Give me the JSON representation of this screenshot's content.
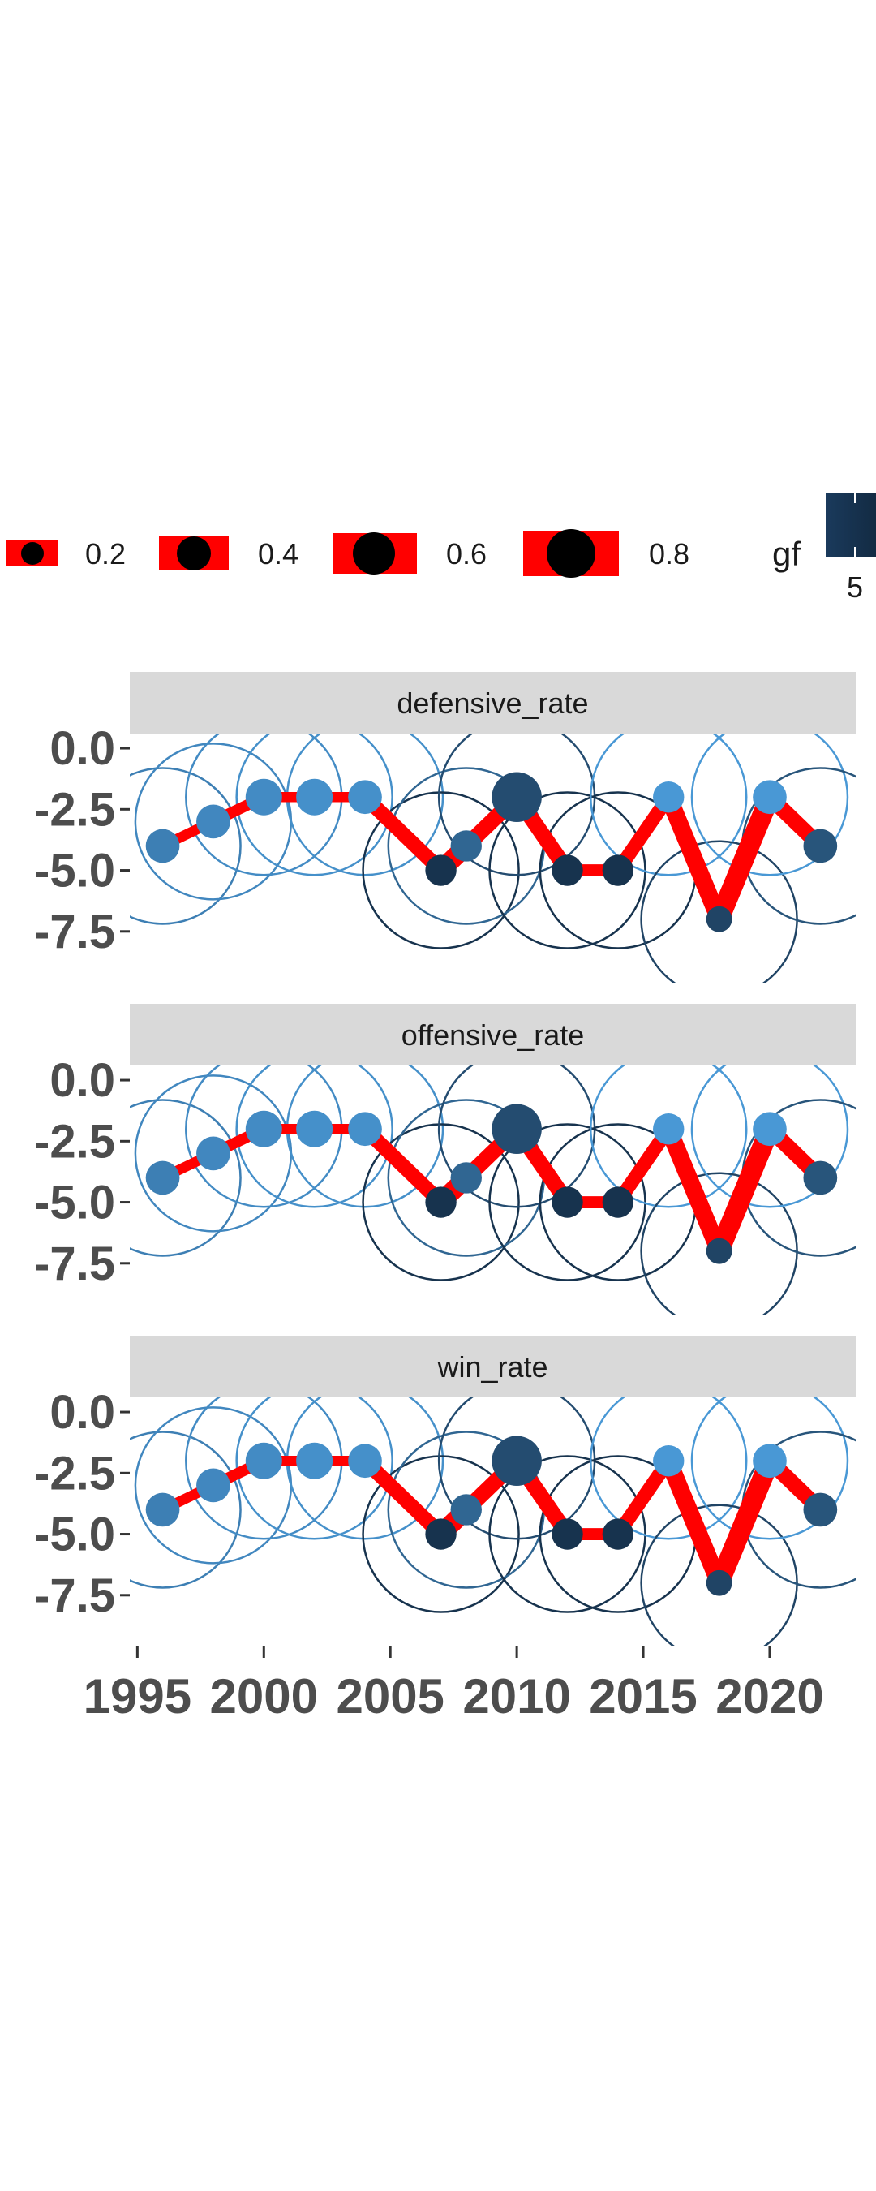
{
  "chart_data": {
    "type": "line",
    "facets": [
      "defensive_rate",
      "offensive_rate",
      "win_rate"
    ],
    "x": [
      1996,
      1998,
      2000,
      2002,
      2004,
      2007,
      2008,
      2010,
      2012,
      2014,
      2016,
      2018,
      2020,
      2022
    ],
    "y": [
      -4,
      -3,
      -2,
      -2,
      -2,
      -5,
      -4,
      -2,
      -5,
      -5,
      -2,
      -7,
      -2,
      -4
    ],
    "point_size": [
      0.45,
      0.45,
      0.5,
      0.5,
      0.45,
      0.4,
      0.4,
      0.75,
      0.4,
      0.4,
      0.4,
      0.3,
      0.45,
      0.45
    ],
    "gf": [
      4.2,
      4.0,
      3.9,
      3.8,
      3.8,
      6.0,
      4.8,
      5.4,
      6.0,
      6.0,
      3.6,
      5.6,
      3.6,
      5.2
    ],
    "line_width": [
      0.3,
      0.35,
      0.3,
      0.3,
      0.55,
      0.8,
      0.6,
      0.6,
      0.4,
      0.5,
      0.7,
      0.85,
      0.6
    ],
    "line_color": "#ff0000",
    "ylim": [
      -9.6,
      0.6
    ],
    "xlim": [
      1994.7,
      2023.4
    ],
    "yticks": [
      0,
      -2.5,
      -5,
      -7.5
    ],
    "ytick_labels": [
      "0.0",
      "-2.5",
      "-5.0",
      "-7.5"
    ],
    "xticks": [
      1995,
      2000,
      2005,
      2010,
      2015,
      2020
    ],
    "xtick_labels": [
      "1995",
      "2000",
      "2005",
      "2010",
      "2015",
      "2020"
    ],
    "xlabel": "",
    "ylabel": "",
    "grid": false,
    "legend": {
      "position": "top",
      "size_breaks": [
        0.2,
        0.4,
        0.6,
        0.8
      ],
      "size_labels": [
        "0.2",
        "0.4",
        "0.6",
        "0.8"
      ],
      "color_title": "gf",
      "color_label": "5",
      "color_low": "#56b1f7",
      "color_high": "#132b43"
    }
  }
}
